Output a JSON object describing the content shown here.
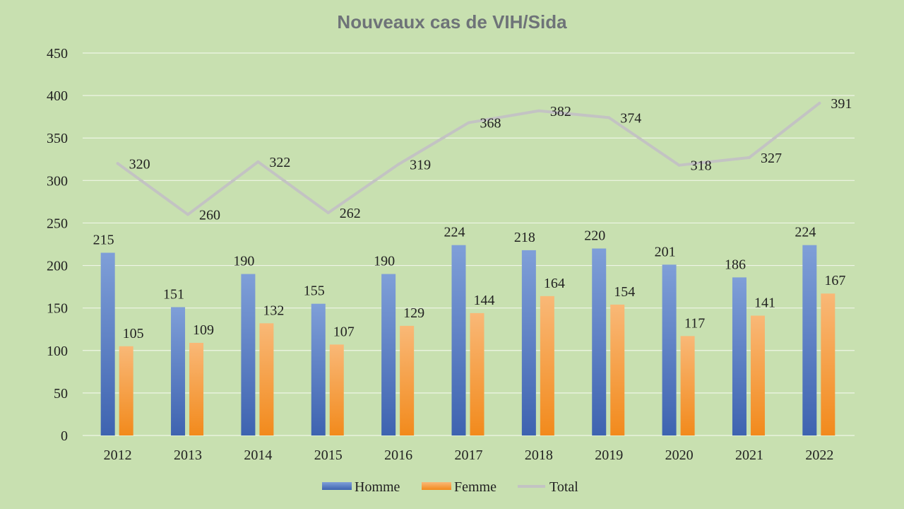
{
  "chart_data": {
    "type": "bar",
    "title": "Nouveaux cas de VIH/Sida",
    "categories": [
      "2012",
      "2013",
      "2014",
      "2015",
      "2016",
      "2017",
      "2018",
      "2019",
      "2020",
      "2021",
      "2022"
    ],
    "series": [
      {
        "name": "Homme",
        "kind": "bar",
        "color": "#4a72c0",
        "values": [
          215,
          151,
          190,
          155,
          190,
          224,
          218,
          220,
          201,
          186,
          224
        ]
      },
      {
        "name": "Femme",
        "kind": "bar",
        "color": "#f5962e",
        "values": [
          105,
          109,
          132,
          107,
          129,
          144,
          164,
          154,
          117,
          141,
          167
        ]
      },
      {
        "name": "Total",
        "kind": "line",
        "color": "#c3c3c3",
        "values": [
          320,
          260,
          322,
          262,
          319,
          368,
          382,
          374,
          318,
          327,
          391
        ]
      }
    ],
    "ylim": [
      0,
      450
    ],
    "yticks": [
      0,
      50,
      100,
      150,
      200,
      250,
      300,
      350,
      400,
      450
    ],
    "xlabel": "",
    "ylabel": "",
    "grid": true,
    "legend": "bottom"
  }
}
